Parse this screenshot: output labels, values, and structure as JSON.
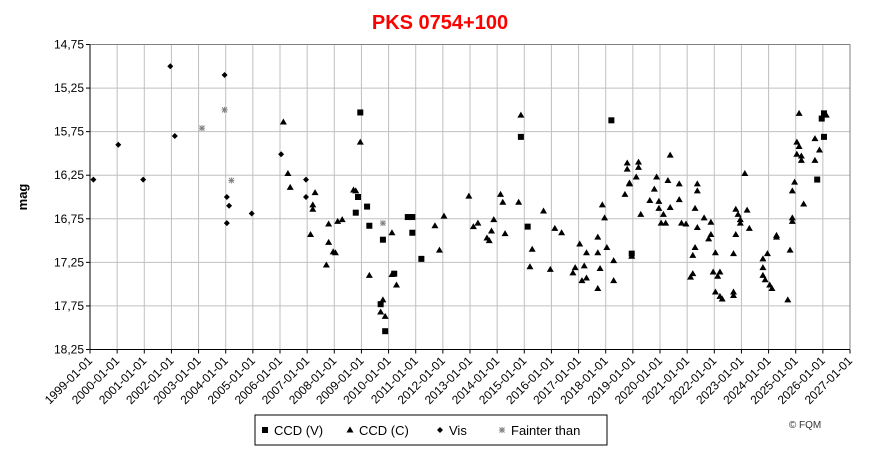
{
  "chart_data": {
    "type": "scatter",
    "title": "PKS 0754+100",
    "xlabel": "",
    "ylabel": "mag",
    "ylim": [
      14.75,
      18.25
    ],
    "y_inverted": true,
    "xlim": [
      "1999-01-01",
      "2027-01-01"
    ],
    "grid": true,
    "legend_position": "bottom",
    "y_ticks": [
      "14,75",
      "15,25",
      "15,75",
      "16,25",
      "16,75",
      "17,25",
      "17,75",
      "18,25"
    ],
    "x_ticks": [
      "1999-01-01",
      "2000-01-01",
      "2001-01-01",
      "2002-01-01",
      "2003-01-01",
      "2004-01-01",
      "2005-01-01",
      "2006-01-01",
      "2007-01-01",
      "2008-01-01",
      "2009-01-01",
      "2010-01-01",
      "2011-01-01",
      "2012-01-01",
      "2013-01-01",
      "2014-01-01",
      "2015-01-01",
      "2016-01-01",
      "2017-01-01",
      "2018-01-01",
      "2019-01-01",
      "2020-01-01",
      "2021-01-01",
      "2022-01-01",
      "2023-01-01",
      "2024-01-01",
      "2025-01-01",
      "2026-01-01",
      "2027-01-01"
    ],
    "copyright": "© FQM",
    "series": [
      {
        "name": "CCD (V)",
        "marker": "square",
        "color": "#000000",
        "points": [
          [
            "2008-12",
            15.53
          ],
          [
            "2008-11",
            16.5
          ],
          [
            "2009-03",
            16.61
          ],
          [
            "2008-10",
            16.68
          ],
          [
            "2009-04",
            16.83
          ],
          [
            "2009-10",
            16.99
          ],
          [
            "2009-09",
            17.73
          ],
          [
            "2009-11",
            18.04
          ],
          [
            "2010-09",
            16.73
          ],
          [
            "2010-11",
            16.73
          ],
          [
            "2010-11",
            16.91
          ],
          [
            "2011-03",
            17.21
          ],
          [
            "2010-03",
            17.38
          ],
          [
            "2014-11",
            15.81
          ],
          [
            "2015-02",
            16.84
          ],
          [
            "2018-03",
            15.62
          ],
          [
            "2018-12",
            17.15
          ],
          [
            "2026-01",
            15.54
          ],
          [
            "2025-12",
            15.6
          ],
          [
            "2026-01",
            15.81
          ],
          [
            "2025-10",
            16.3
          ]
        ]
      },
      {
        "name": "CCD (C)",
        "marker": "triangle",
        "color": "#000000",
        "points": [
          [
            "2006-02",
            15.64
          ],
          [
            "2006-04",
            16.23
          ],
          [
            "2006-05",
            16.39
          ],
          [
            "2007-04",
            16.45
          ],
          [
            "2007-03",
            16.59
          ],
          [
            "2007-03",
            16.64
          ],
          [
            "2007-02",
            16.93
          ],
          [
            "2007-10",
            16.81
          ],
          [
            "2007-10",
            17.02
          ],
          [
            "2007-12",
            17.13
          ],
          [
            "2008-01",
            17.14
          ],
          [
            "2007-09",
            17.28
          ],
          [
            "2008-02",
            16.78
          ],
          [
            "2008-04",
            16.76
          ],
          [
            "2008-09",
            16.42
          ],
          [
            "2008-10",
            16.43
          ],
          [
            "2008-12",
            15.87
          ],
          [
            "2009-04",
            17.4
          ],
          [
            "2010-02",
            16.91
          ],
          [
            "2010-02",
            17.39
          ],
          [
            "2010-04",
            17.51
          ],
          [
            "2009-10",
            17.68
          ],
          [
            "2009-09",
            17.82
          ],
          [
            "2009-11",
            17.87
          ],
          [
            "2011-09",
            16.83
          ],
          [
            "2011-11",
            17.11
          ],
          [
            "2012-01",
            16.72
          ],
          [
            "2012-12",
            16.49
          ],
          [
            "2013-02",
            16.84
          ],
          [
            "2013-04",
            16.8
          ],
          [
            "2013-08",
            16.97
          ],
          [
            "2013-09",
            17.0
          ],
          [
            "2013-10",
            16.89
          ],
          [
            "2013-11",
            16.76
          ],
          [
            "2014-02",
            16.47
          ],
          [
            "2014-03",
            16.56
          ],
          [
            "2014-04",
            16.92
          ],
          [
            "2014-10",
            16.56
          ],
          [
            "2014-11",
            15.56
          ],
          [
            "2015-04",
            17.1
          ],
          [
            "2015-03",
            17.3
          ],
          [
            "2015-09",
            16.66
          ],
          [
            "2015-12",
            17.33
          ],
          [
            "2016-02",
            16.86
          ],
          [
            "2016-05",
            16.91
          ],
          [
            "2017-01",
            17.04
          ],
          [
            "2017-04",
            17.14
          ],
          [
            "2016-11",
            17.31
          ],
          [
            "2016-10",
            17.37
          ],
          [
            "2017-03",
            17.29
          ],
          [
            "2017-02",
            17.46
          ],
          [
            "2017-04",
            17.43
          ],
          [
            "2017-09",
            16.96
          ],
          [
            "2017-09",
            17.14
          ],
          [
            "2018-01",
            17.08
          ],
          [
            "2017-10",
            17.32
          ],
          [
            "2017-09",
            17.55
          ],
          [
            "2018-04",
            17.23
          ],
          [
            "2018-04",
            17.46
          ],
          [
            "2017-11",
            16.59
          ],
          [
            "2017-12",
            16.74
          ],
          [
            "2018-10",
            16.11
          ],
          [
            "2018-10",
            16.18
          ],
          [
            "2018-11",
            16.34
          ],
          [
            "2018-09",
            16.47
          ],
          [
            "2018-12",
            17.18
          ],
          [
            "2019-03",
            16.1
          ],
          [
            "2019-03",
            16.16
          ],
          [
            "2019-02",
            16.27
          ],
          [
            "2018-11",
            16.35
          ],
          [
            "2019-04",
            16.7
          ],
          [
            "2020-05",
            16.02
          ],
          [
            "2019-11",
            16.27
          ],
          [
            "2020-04",
            16.31
          ],
          [
            "2020-09",
            16.35
          ],
          [
            "2021-05",
            16.35
          ],
          [
            "2021-05",
            16.43
          ],
          [
            "2019-10",
            16.41
          ],
          [
            "2019-08",
            16.54
          ],
          [
            "2019-12",
            16.55
          ],
          [
            "2019-12",
            16.63
          ],
          [
            "2020-05",
            16.62
          ],
          [
            "2020-09",
            16.53
          ],
          [
            "2020-02",
            16.7
          ],
          [
            "2020-01",
            16.8
          ],
          [
            "2020-03",
            16.8
          ],
          [
            "2020-10",
            16.8
          ],
          [
            "2020-12",
            16.81
          ],
          [
            "2021-04",
            16.63
          ],
          [
            "2021-05",
            16.85
          ],
          [
            "2021-08",
            16.74
          ],
          [
            "2021-11",
            16.79
          ],
          [
            "2021-11",
            16.93
          ],
          [
            "2021-10",
            16.98
          ],
          [
            "2021-04",
            17.08
          ],
          [
            "2021-03",
            17.17
          ],
          [
            "2021-03",
            17.38
          ],
          [
            "2021-02",
            17.42
          ],
          [
            "2022-01",
            17.14
          ],
          [
            "2021-12",
            17.36
          ],
          [
            "2022-03",
            17.36
          ],
          [
            "2022-02",
            17.41
          ],
          [
            "2022-01",
            17.59
          ],
          [
            "2022-03",
            17.64
          ],
          [
            "2022-04",
            17.67
          ],
          [
            "2022-09",
            17.59
          ],
          [
            "2022-09",
            17.63
          ],
          [
            "2022-09",
            17.15
          ],
          [
            "2022-10",
            16.93
          ],
          [
            "2022-10",
            16.64
          ],
          [
            "2022-11",
            16.7
          ],
          [
            "2022-12",
            16.8
          ],
          [
            "2022-12",
            16.76
          ],
          [
            "2023-03",
            16.65
          ],
          [
            "2023-04",
            16.86
          ],
          [
            "2023-02",
            16.23
          ],
          [
            "2023-12",
            17.15
          ],
          [
            "2023-10",
            17.21
          ],
          [
            "2023-10",
            17.31
          ],
          [
            "2023-10",
            17.4
          ],
          [
            "2023-11",
            17.45
          ],
          [
            "2024-01",
            17.51
          ],
          [
            "2024-02",
            17.55
          ],
          [
            "2024-04",
            16.94
          ],
          [
            "2024-04",
            16.96
          ],
          [
            "2024-09",
            17.68
          ],
          [
            "2024-10",
            17.11
          ],
          [
            "2024-11",
            16.74
          ],
          [
            "2024-11",
            16.78
          ],
          [
            "2024-11",
            16.43
          ],
          [
            "2024-12",
            16.33
          ],
          [
            "2025-04",
            16.58
          ],
          [
            "2025-02",
            15.54
          ],
          [
            "2025-01",
            15.87
          ],
          [
            "2025-02",
            15.92
          ],
          [
            "2025-01",
            16.01
          ],
          [
            "2025-03",
            16.03
          ],
          [
            "2025-03",
            16.08
          ],
          [
            "2025-09",
            15.83
          ],
          [
            "2025-11",
            15.96
          ],
          [
            "2025-09",
            16.08
          ],
          [
            "2026-02",
            15.56
          ]
        ]
      },
      {
        "name": "Vis",
        "marker": "diamond",
        "color": "#000000",
        "points": [
          [
            "1999-02",
            16.3
          ],
          [
            "2000-01",
            15.9
          ],
          [
            "2000-12",
            16.3
          ],
          [
            "2001-12",
            15.0
          ],
          [
            "2002-02",
            15.8
          ],
          [
            "2003-12",
            15.1
          ],
          [
            "2004-01",
            16.5
          ],
          [
            "2004-02",
            16.6
          ],
          [
            "2004-01",
            16.8
          ],
          [
            "2004-12",
            16.69
          ],
          [
            "2006-01",
            16.01
          ],
          [
            "2006-12",
            16.3
          ],
          [
            "2006-12",
            16.5
          ]
        ]
      },
      {
        "name": "Fainter than",
        "marker": "asterisk",
        "color": "#808080",
        "points": [
          [
            "2003-02",
            15.71
          ],
          [
            "2003-12",
            15.5
          ],
          [
            "2004-03",
            16.31
          ],
          [
            "2009-10",
            16.8
          ]
        ]
      }
    ]
  }
}
